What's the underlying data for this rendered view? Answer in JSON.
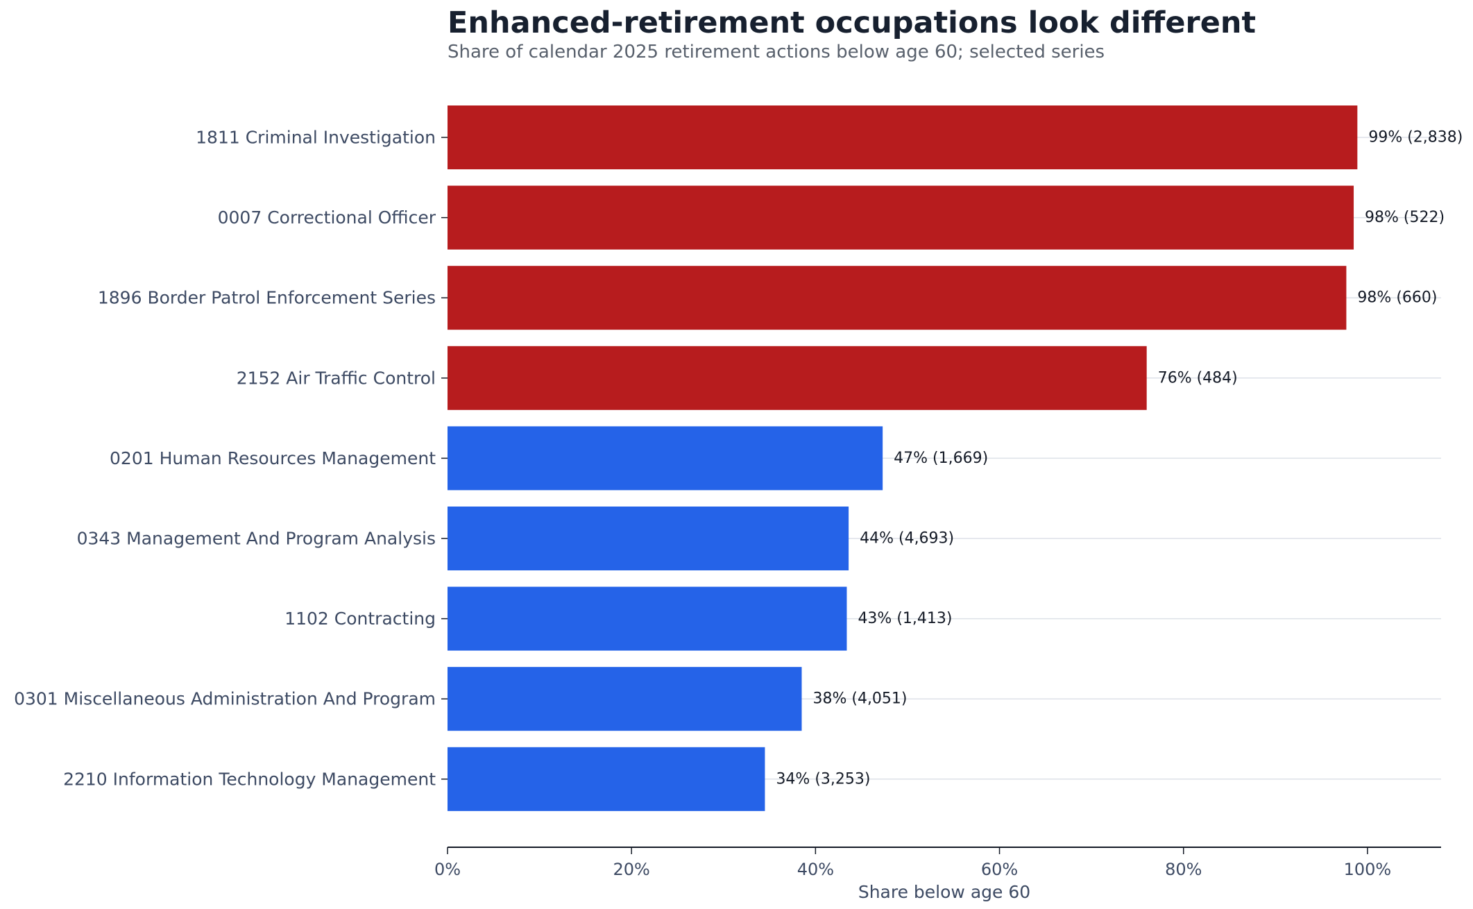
{
  "chart_data": {
    "type": "bar",
    "orientation": "horizontal",
    "title": "Enhanced-retirement occupations look different",
    "subtitle": "Share of calendar 2025 retirement actions below age 60; selected series",
    "xlabel": "Share below age 60",
    "ylabel": "",
    "xlim": [
      0,
      108
    ],
    "x_ticks": [
      {
        "value": 0,
        "label": "0%"
      },
      {
        "value": 20,
        "label": "20%"
      },
      {
        "value": 40,
        "label": "40%"
      },
      {
        "value": 60,
        "label": "60%"
      },
      {
        "value": 80,
        "label": "80%"
      },
      {
        "value": 100,
        "label": "100%"
      }
    ],
    "grid": "horizontal lines at each category",
    "legend": "none",
    "colors": {
      "enhanced": "#b71c1e",
      "standard": "#2563e8",
      "grid": "#dde1e8",
      "axis": "#141a26"
    },
    "categories": [
      "1811 Criminal Investigation",
      "0007 Correctional Officer",
      "1896 Border Patrol Enforcement Series",
      "2152 Air Traffic Control",
      "0201 Human Resources Management",
      "0343 Management And Program Analysis",
      "1102 Contracting",
      "0301 Miscellaneous Administration And Program",
      "2210 Information Technology Management"
    ],
    "values": [
      98.9,
      98.5,
      97.7,
      76.0,
      47.3,
      43.6,
      43.4,
      38.5,
      34.5
    ],
    "counts": [
      "2,838",
      "522",
      "660",
      "484",
      "1,669",
      "4,693",
      "1,413",
      "4,051",
      "3,253"
    ],
    "value_labels": [
      "99% (2,838)",
      "98% (522)",
      "98% (660)",
      "76% (484)",
      "47% (1,669)",
      "44% (4,693)",
      "43% (1,413)",
      "38% (4,051)",
      "34% (3,253)"
    ],
    "groups": [
      "enhanced",
      "enhanced",
      "enhanced",
      "enhanced",
      "standard",
      "standard",
      "standard",
      "standard",
      "standard"
    ]
  }
}
